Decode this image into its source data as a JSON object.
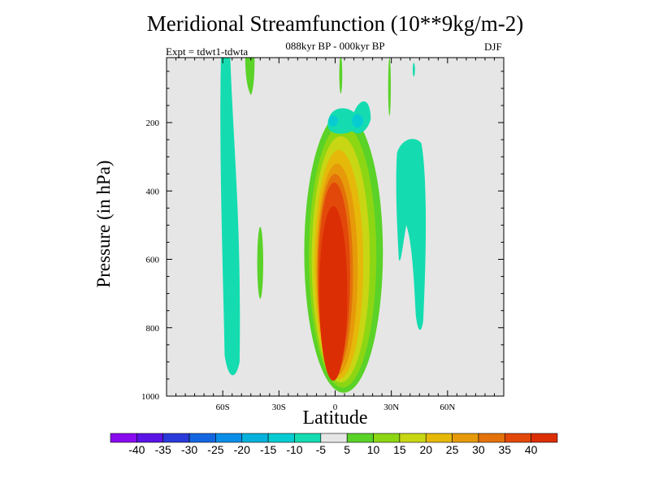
{
  "chart_data": {
    "type": "contour",
    "title": "Meridional Streamfunction (10**9kg/m-2)",
    "subtitle": "088kyr BP - 000kyr BP",
    "left_label": "Expt = tdwt1-tdwta",
    "right_label": "DJF",
    "xlabel": "Latitude",
    "ylabel": "Pressure (in hPa)",
    "x_ticks": [
      "60S",
      "30S",
      "0",
      "30N",
      "60N"
    ],
    "x_tick_values": [
      -60,
      -30,
      0,
      30,
      60
    ],
    "xlim": [
      -90,
      90
    ],
    "y_ticks": [
      "200",
      "400",
      "600",
      "800",
      "1000"
    ],
    "y_tick_values": [
      200,
      400,
      600,
      800,
      1000
    ],
    "ylim": [
      1000,
      10
    ],
    "colorbar": {
      "labels": [
        "-40",
        "-35",
        "-30",
        "-25",
        "-20",
        "-15",
        "-10",
        "-5",
        "5",
        "10",
        "15",
        "20",
        "25",
        "30",
        "35",
        "40"
      ],
      "colors": [
        "#8a0af0",
        "#5a14e6",
        "#2a3ad8",
        "#1466e0",
        "#0a8ee8",
        "#06b2dc",
        "#06ccd2",
        "#14dcb0",
        "#e6e6e6",
        "#5ad228",
        "#8cd614",
        "#c8d614",
        "#e6b80a",
        "#e69a0a",
        "#e4720a",
        "#e2480a",
        "#dc2e04"
      ]
    },
    "features": [
      {
        "name": "Tropical positive cell",
        "lat_range": [
          -15,
          25
        ],
        "p_range": [
          170,
          985
        ],
        "peak_value": 40,
        "lat_peak": -1,
        "p_peak": 700
      },
      {
        "name": "Upper tropical negative cell",
        "lat_range": [
          -5,
          20
        ],
        "p_range": [
          125,
          235
        ],
        "min_value": -15
      },
      {
        "name": "SH midlatitude weak negative column",
        "lat_range": [
          -62,
          -50
        ],
        "p_range": [
          10,
          950
        ],
        "min_value": -5
      },
      {
        "name": "NH subtropical weak negative column",
        "lat_range": [
          32,
          48
        ],
        "p_range": [
          245,
          810
        ],
        "min_value": -5
      }
    ]
  }
}
